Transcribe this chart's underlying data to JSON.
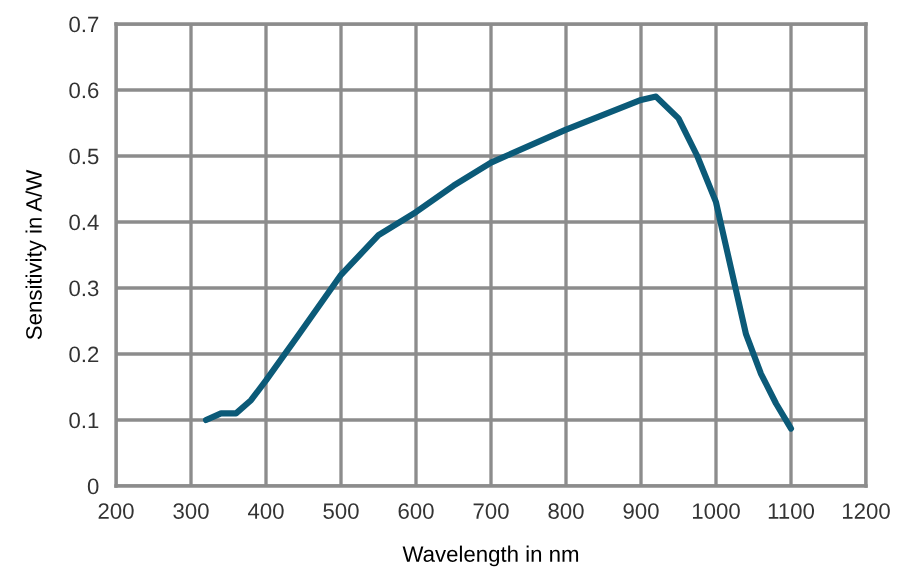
{
  "chart_data": {
    "type": "line",
    "xlabel": "Wavelength in nm",
    "ylabel": "Sensitivity in A/W",
    "xlim": [
      200,
      1200
    ],
    "xticks": [
      200,
      300,
      400,
      500,
      600,
      700,
      800,
      900,
      1000,
      1100,
      1200
    ],
    "ylim": [
      0,
      0.7
    ],
    "yticks": [
      0,
      0.1,
      0.2,
      0.3,
      0.4,
      0.5,
      0.6,
      0.7
    ],
    "grid": true,
    "marker": "none",
    "line_style": "solid",
    "series": [
      {
        "color": "#0b5a78",
        "x": [
          320,
          340,
          360,
          380,
          400,
          444,
          500,
          550,
          600,
          650,
          700,
          800,
          900,
          920,
          950,
          975,
          1000,
          1020,
          1040,
          1060,
          1080,
          1100
        ],
        "values": [
          0.1,
          0.11,
          0.11,
          0.13,
          0.16,
          0.23,
          0.32,
          0.38,
          0.415,
          0.455,
          0.49,
          0.54,
          0.585,
          0.59,
          0.557,
          0.5,
          0.43,
          0.33,
          0.23,
          0.17,
          0.125,
          0.087
        ]
      }
    ]
  }
}
